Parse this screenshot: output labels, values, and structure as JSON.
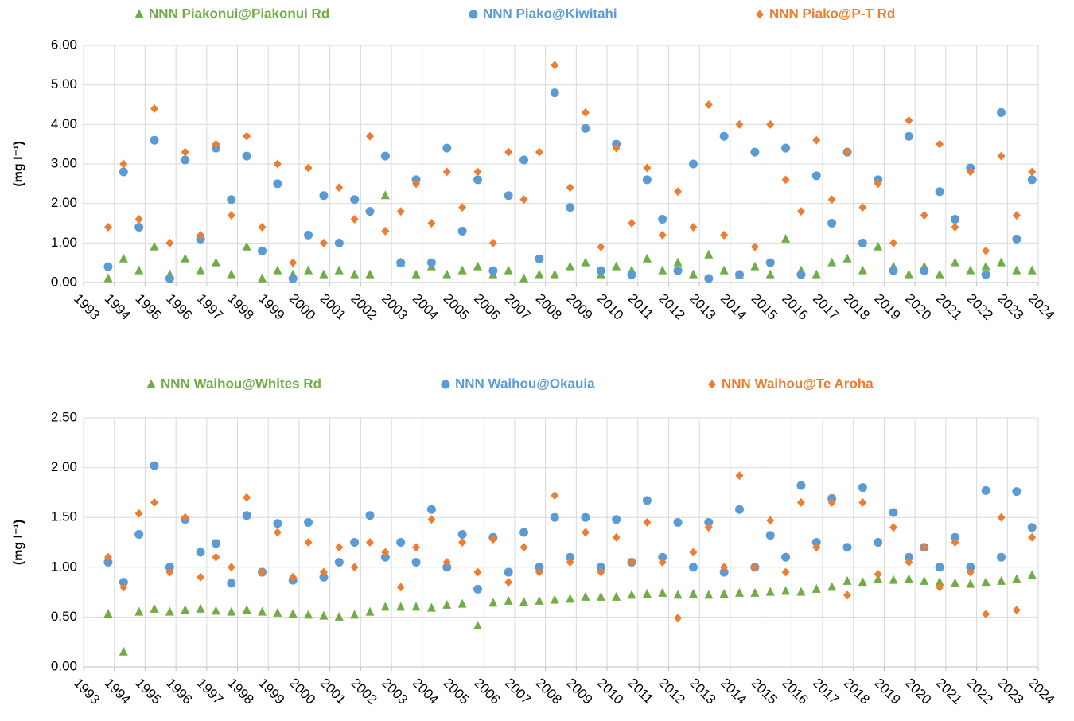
{
  "chart_data": [
    {
      "type": "scatter",
      "y_label": "(mg l⁻¹)",
      "grid": true,
      "legend": "top",
      "x": [
        1993.8,
        1994.3,
        1994.8,
        1995.3,
        1995.8,
        1996.3,
        1996.8,
        1997.3,
        1997.8,
        1998.3,
        1998.8,
        1999.3,
        1999.8,
        2000.3,
        2000.8,
        2001.3,
        2001.8,
        2002.3,
        2002.8,
        2003.3,
        2003.8,
        2004.3,
        2004.8,
        2005.3,
        2005.8,
        2006.3,
        2006.8,
        2007.3,
        2007.8,
        2008.3,
        2008.8,
        2009.3,
        2009.8,
        2010.3,
        2010.8,
        2011.3,
        2011.8,
        2012.3,
        2012.8,
        2013.3,
        2013.8,
        2014.3,
        2014.8,
        2015.3,
        2015.8,
        2016.3,
        2016.8,
        2017.3,
        2017.8,
        2018.3,
        2018.8,
        2019.3,
        2019.8,
        2020.3,
        2020.8,
        2021.3,
        2021.8,
        2022.3,
        2022.8,
        2023.3,
        2023.8
      ],
      "series": [
        {
          "name": "NNN Piakonui@Piakonui Rd",
          "color": "#70ad47",
          "marker": "triangle",
          "values": [
            0.1,
            0.6,
            0.3,
            0.9,
            0.2,
            0.6,
            0.3,
            0.5,
            0.2,
            0.9,
            0.1,
            0.3,
            0.2,
            0.3,
            0.2,
            0.3,
            0.2,
            0.2,
            2.2,
            0.5,
            0.2,
            0.4,
            0.2,
            0.3,
            0.4,
            0.2,
            0.3,
            0.1,
            0.2,
            0.2,
            0.4,
            0.5,
            0.2,
            0.4,
            0.3,
            0.6,
            0.3,
            0.5,
            0.2,
            0.7,
            0.3,
            0.2,
            0.4,
            0.2,
            1.1,
            0.3,
            0.2,
            0.5,
            0.6,
            0.3,
            0.9,
            0.4,
            0.2,
            0.4,
            0.2,
            0.5,
            0.3,
            0.4,
            0.5,
            0.3,
            0.3
          ]
        },
        {
          "name": "NNN Piako@Kiwitahi",
          "color": "#5b9bd5",
          "marker": "circle",
          "values": [
            0.4,
            2.8,
            1.4,
            3.6,
            0.1,
            3.1,
            1.1,
            3.4,
            2.1,
            3.2,
            0.8,
            2.5,
            0.1,
            1.2,
            2.2,
            1.0,
            2.1,
            1.8,
            3.2,
            0.5,
            2.6,
            0.5,
            3.4,
            1.3,
            2.6,
            0.3,
            2.2,
            3.1,
            0.6,
            4.8,
            1.9,
            3.9,
            0.3,
            3.5,
            0.2,
            2.6,
            1.6,
            0.3,
            3.0,
            0.1,
            3.7,
            0.2,
            3.3,
            0.5,
            3.4,
            0.2,
            2.7,
            1.5,
            3.3,
            1.0,
            2.6,
            0.3,
            3.7,
            0.3,
            2.3,
            1.6,
            2.9,
            0.2,
            4.3,
            1.1,
            2.6
          ]
        },
        {
          "name": "NNN Piako@P-T Rd",
          "color": "#ed7d31",
          "marker": "diamond",
          "values": [
            1.4,
            3.0,
            1.6,
            4.4,
            1.0,
            3.3,
            1.2,
            3.5,
            1.7,
            3.7,
            1.4,
            3.0,
            0.5,
            2.9,
            1.0,
            2.4,
            1.6,
            3.7,
            1.3,
            1.8,
            2.5,
            1.5,
            2.8,
            1.9,
            2.8,
            1.0,
            3.3,
            2.1,
            3.3,
            5.5,
            2.4,
            4.3,
            0.9,
            3.4,
            1.5,
            2.9,
            1.2,
            2.3,
            1.4,
            4.5,
            1.2,
            4.0,
            0.9,
            4.0,
            2.6,
            1.8,
            3.6,
            2.1,
            3.3,
            1.9,
            2.5,
            1.0,
            4.1,
            1.7,
            3.5,
            1.4,
            2.8,
            0.8,
            3.2,
            1.7,
            2.8
          ]
        }
      ],
      "xlim": [
        1993,
        2024
      ],
      "xticks": [
        1993,
        1994,
        1995,
        1996,
        1997,
        1998,
        1999,
        2000,
        2001,
        2002,
        2003,
        2004,
        2005,
        2006,
        2007,
        2008,
        2009,
        2010,
        2011,
        2012,
        2013,
        2014,
        2015,
        2016,
        2017,
        2018,
        2019,
        2020,
        2021,
        2022,
        2023,
        2024
      ],
      "ylim": [
        0,
        6
      ],
      "yticks": [
        {
          "value": 0,
          "label": "0.00"
        },
        {
          "value": 1,
          "label": "1.00"
        },
        {
          "value": 2,
          "label": "2.00"
        },
        {
          "value": 3,
          "label": "3.00"
        },
        {
          "value": 4,
          "label": "4.00"
        },
        {
          "value": 5,
          "label": "5.00"
        },
        {
          "value": 6,
          "label": "6.00"
        }
      ]
    },
    {
      "type": "scatter",
      "y_label": "(mg l⁻¹)",
      "grid": true,
      "legend": "top",
      "x": [
        1993.8,
        1994.3,
        1994.8,
        1995.3,
        1995.8,
        1996.3,
        1996.8,
        1997.3,
        1997.8,
        1998.3,
        1998.8,
        1999.3,
        1999.8,
        2000.3,
        2000.8,
        2001.3,
        2001.8,
        2002.3,
        2002.8,
        2003.3,
        2003.8,
        2004.3,
        2004.8,
        2005.3,
        2005.8,
        2006.3,
        2006.8,
        2007.3,
        2007.8,
        2008.3,
        2008.8,
        2009.3,
        2009.8,
        2010.3,
        2010.8,
        2011.3,
        2011.8,
        2012.3,
        2012.8,
        2013.3,
        2013.8,
        2014.3,
        2014.8,
        2015.3,
        2015.8,
        2016.3,
        2016.8,
        2017.3,
        2017.8,
        2018.3,
        2018.8,
        2019.3,
        2019.8,
        2020.3,
        2020.8,
        2021.3,
        2021.8,
        2022.3,
        2022.8,
        2023.3,
        2023.8
      ],
      "series": [
        {
          "name": "NNN Waihou@Whites Rd",
          "color": "#70ad47",
          "marker": "triangle",
          "values": [
            0.53,
            0.15,
            0.55,
            0.58,
            0.55,
            0.57,
            0.58,
            0.56,
            0.55,
            0.57,
            0.55,
            0.54,
            0.53,
            0.52,
            0.51,
            0.5,
            0.52,
            0.55,
            0.6,
            0.6,
            0.6,
            0.59,
            0.62,
            0.63,
            0.41,
            0.64,
            0.66,
            0.65,
            0.66,
            0.67,
            0.68,
            0.7,
            0.7,
            0.7,
            0.72,
            0.73,
            0.74,
            0.72,
            0.73,
            0.72,
            0.73,
            0.74,
            0.74,
            0.75,
            0.76,
            0.75,
            0.78,
            0.8,
            0.86,
            0.85,
            0.88,
            0.87,
            0.88,
            0.86,
            0.85,
            0.84,
            0.83,
            0.85,
            0.86,
            0.88,
            0.92
          ]
        },
        {
          "name": "NNN Waihou@Okauia",
          "color": "#5b9bd5",
          "marker": "circle",
          "values": [
            1.05,
            0.85,
            1.33,
            2.02,
            1.0,
            1.48,
            1.15,
            1.24,
            0.84,
            1.52,
            0.95,
            1.44,
            0.87,
            1.45,
            0.9,
            1.05,
            1.25,
            1.52,
            1.1,
            1.25,
            1.05,
            1.58,
            1.0,
            1.33,
            0.78,
            1.3,
            0.95,
            1.35,
            1.0,
            1.5,
            1.1,
            1.5,
            1.0,
            1.48,
            1.05,
            1.67,
            1.1,
            1.45,
            1.0,
            1.45,
            0.95,
            1.58,
            1.0,
            1.32,
            1.1,
            1.82,
            1.25,
            1.69,
            1.2,
            1.8,
            1.25,
            1.55,
            1.1,
            1.2,
            1.0,
            1.3,
            1.0,
            1.77,
            1.1,
            1.76,
            1.4
          ]
        },
        {
          "name": "NNN Waihou@Te Aroha",
          "color": "#ed7d31",
          "marker": "diamond",
          "values": [
            1.1,
            0.8,
            1.54,
            1.65,
            0.95,
            1.5,
            0.9,
            1.1,
            1.0,
            1.7,
            0.95,
            1.35,
            0.9,
            1.25,
            0.95,
            1.2,
            1.0,
            1.25,
            1.15,
            0.8,
            1.2,
            1.48,
            1.05,
            1.25,
            0.95,
            1.28,
            0.85,
            1.2,
            0.95,
            1.72,
            1.05,
            1.35,
            0.95,
            1.3,
            1.05,
            1.45,
            1.05,
            0.49,
            1.15,
            1.4,
            1.0,
            1.92,
            1.0,
            1.47,
            0.95,
            1.65,
            1.2,
            1.65,
            0.72,
            1.65,
            0.93,
            1.4,
            1.05,
            1.2,
            0.8,
            1.25,
            0.95,
            0.53,
            1.5,
            0.57,
            1.3
          ]
        }
      ],
      "xlim": [
        1993,
        2024
      ],
      "xticks": [
        1993,
        1994,
        1995,
        1996,
        1997,
        1998,
        1999,
        2000,
        2001,
        2002,
        2003,
        2004,
        2005,
        2006,
        2007,
        2008,
        2009,
        2010,
        2011,
        2012,
        2013,
        2014,
        2015,
        2016,
        2017,
        2018,
        2019,
        2020,
        2021,
        2022,
        2023,
        2024
      ],
      "ylim": [
        0,
        2.5
      ],
      "yticks": [
        {
          "value": 0,
          "label": "0.00"
        },
        {
          "value": 0.5,
          "label": "0.50"
        },
        {
          "value": 1,
          "label": "1.00"
        },
        {
          "value": 1.5,
          "label": "1.50"
        },
        {
          "value": 2,
          "label": "2.00"
        },
        {
          "value": 2.5,
          "label": "2.50"
        }
      ]
    }
  ]
}
